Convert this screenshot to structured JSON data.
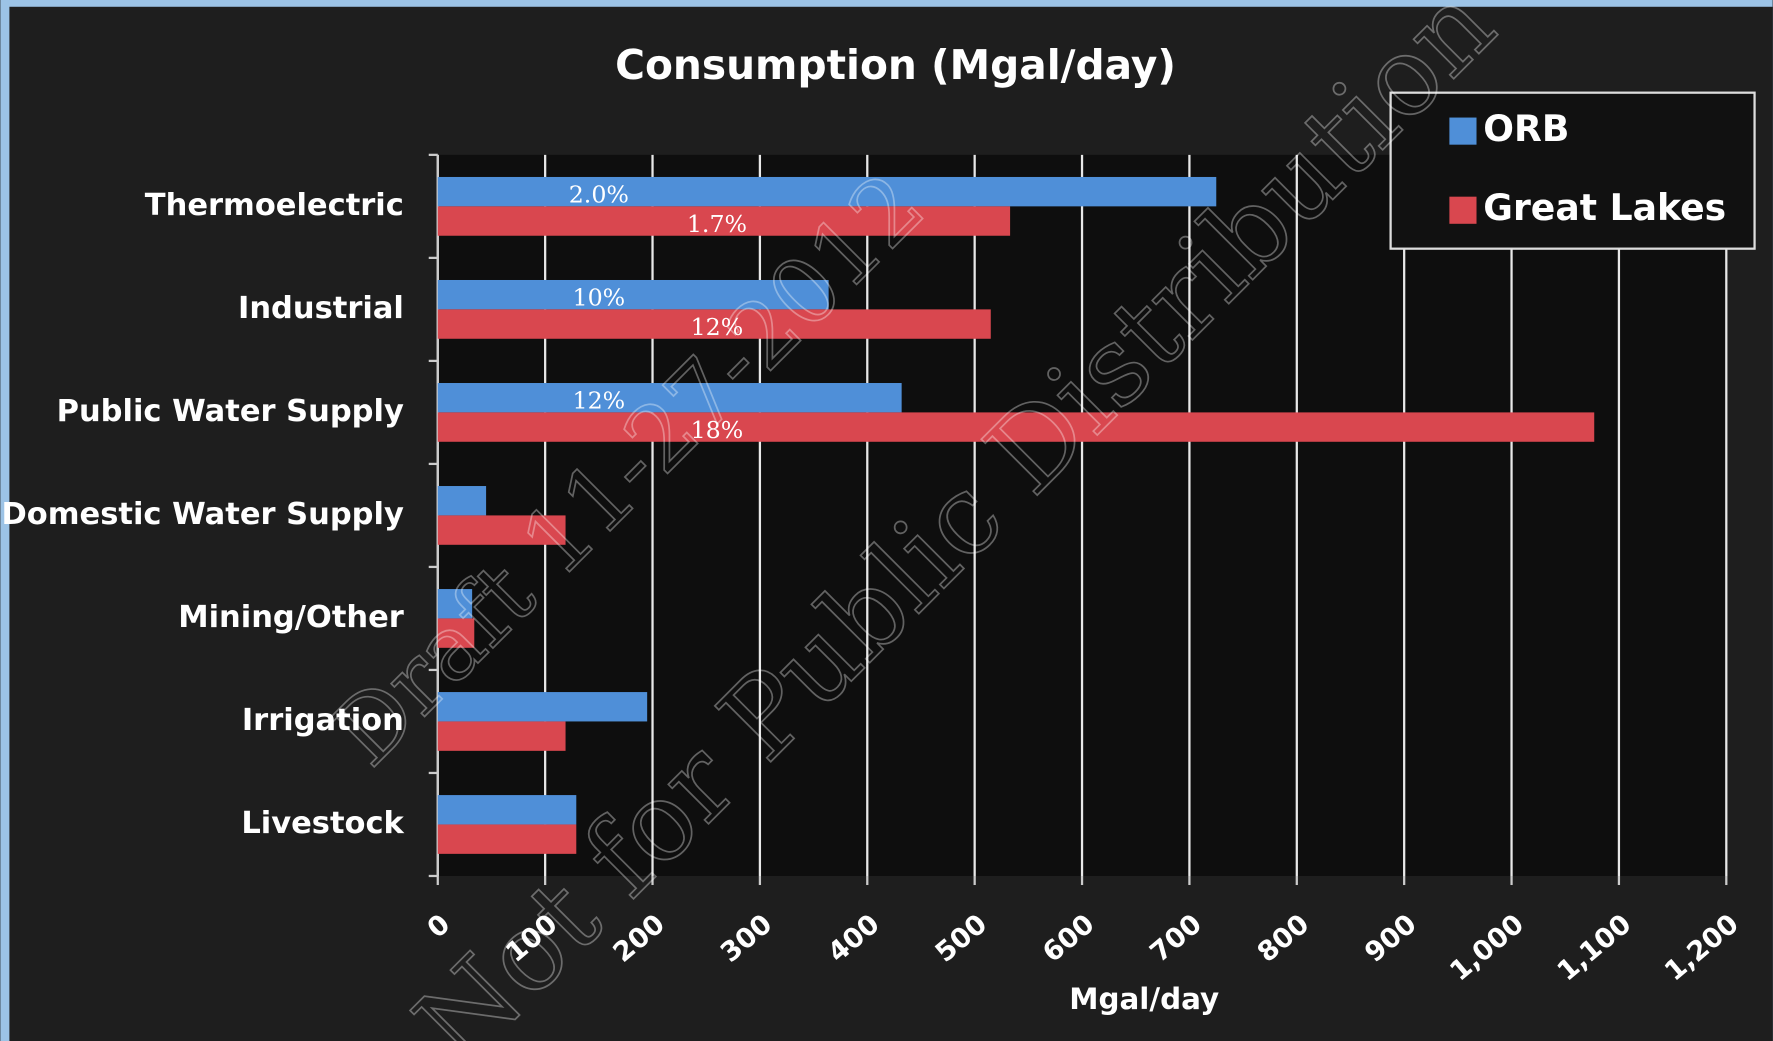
{
  "chart_data": {
    "type": "bar",
    "orientation": "horizontal",
    "title": "Consumption (Mgal/day)",
    "x_label": "Mgal/day",
    "categories": [
      "Thermoelectric",
      "Industrial",
      "Public Water Supply",
      "Domestic Water Supply",
      "Mining/Other",
      "Irrigation",
      "Livestock"
    ],
    "series": [
      {
        "name": "ORB",
        "color": "#4f8fd8",
        "values": [
          725,
          364,
          432,
          45,
          32,
          195,
          129
        ],
        "annotations": [
          "2.0%",
          "10%",
          "12%",
          null,
          null,
          null,
          null
        ]
      },
      {
        "name": "Great Lakes",
        "color": "#d9474f",
        "values": [
          533,
          515,
          1077,
          119,
          34,
          119,
          129
        ],
        "annotations": [
          "1.7%",
          "12%",
          "18%",
          null,
          null,
          null,
          null
        ]
      }
    ],
    "xlim": [
      0,
      1200
    ],
    "xticks": [
      0,
      100,
      200,
      300,
      400,
      500,
      600,
      700,
      800,
      900,
      {
        "value": 1000,
        "label": "1,000"
      },
      {
        "value": 1100,
        "label": "1,100"
      },
      {
        "value": 1200,
        "label": "1,200"
      }
    ],
    "grid": true,
    "legend": "top-right",
    "watermark": [
      "Draft 11-27-2012",
      "Not for Public Distribution"
    ]
  }
}
